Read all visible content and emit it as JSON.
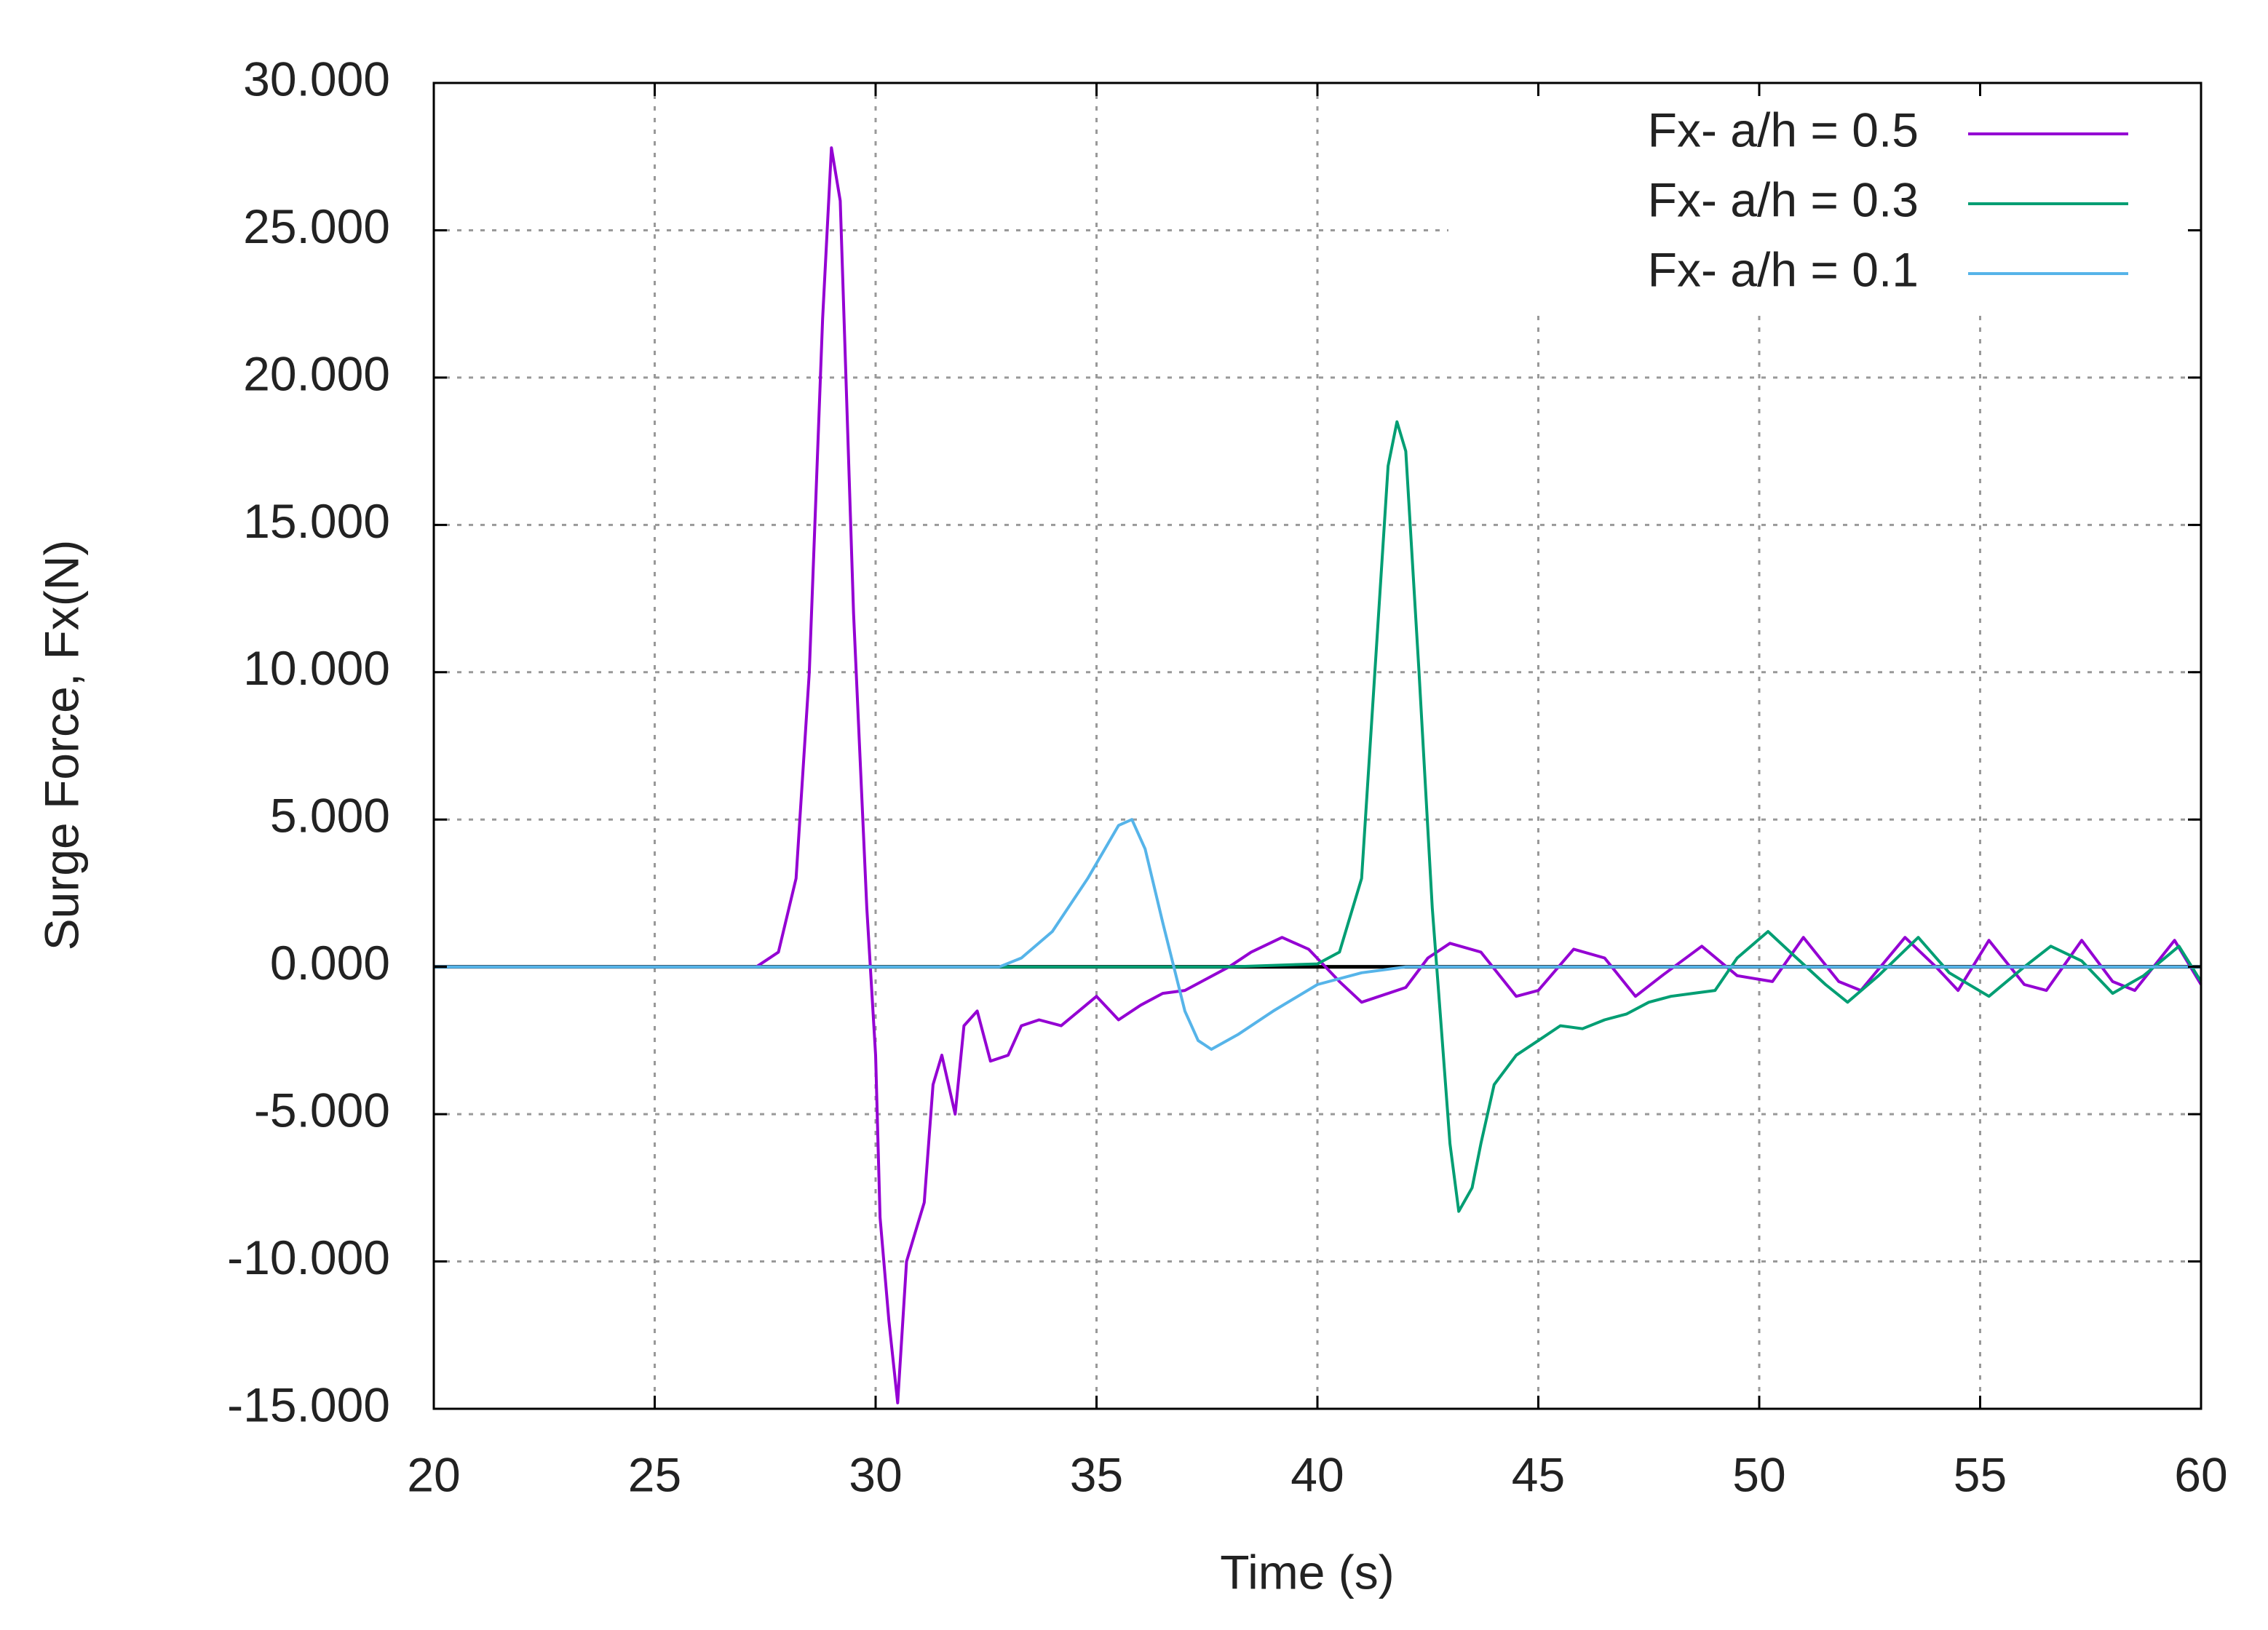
{
  "chart_data": {
    "type": "line",
    "xlabel": "Time (s)",
    "ylabel": "Surge Force, Fx(N)",
    "xlim": [
      20,
      60
    ],
    "xticks": [
      20,
      25,
      30,
      35,
      40,
      45,
      50,
      55,
      60
    ],
    "ylim": [
      -15,
      30
    ],
    "yticks": [
      {
        "value": -15,
        "label": "-15.000"
      },
      {
        "value": -10,
        "label": "-10.000"
      },
      {
        "value": -5,
        "label": "-5.000"
      },
      {
        "value": 0,
        "label": "0.000"
      },
      {
        "value": 5,
        "label": "5.000"
      },
      {
        "value": 10,
        "label": "10.000"
      },
      {
        "value": 15,
        "label": "15.000"
      },
      {
        "value": 20,
        "label": "20.000"
      },
      {
        "value": 25,
        "label": "25.000"
      },
      {
        "value": 30,
        "label": "30.000"
      }
    ],
    "grid": true,
    "legend": "upper right",
    "series": [
      {
        "name": "Fx- a/h = 0.5",
        "color": "#9400d3",
        "x": [
          20,
          27.3,
          27.8,
          28.2,
          28.5,
          28.8,
          29,
          29.2,
          29.5,
          29.8,
          30,
          30.1,
          30.3,
          30.5,
          30.7,
          30.9,
          31.1,
          31.3,
          31.5,
          31.8,
          32,
          32.3,
          32.6,
          33,
          33.3,
          33.7,
          34.2,
          34.6,
          35,
          35.5,
          36,
          36.5,
          37,
          37.5,
          38,
          38.5,
          39.2,
          39.8,
          40.5,
          41,
          42,
          42.5,
          43,
          43.7,
          44.5,
          45,
          45.8,
          46.5,
          47.2,
          47.8,
          48.7,
          49.5,
          50.3,
          51,
          51.8,
          52.3,
          53.3,
          54,
          54.5,
          55.2,
          56,
          56.5,
          57.3,
          58,
          58.5,
          59.4,
          60
        ],
        "values": [
          0,
          0,
          0.5,
          3,
          10,
          22,
          27.8,
          26,
          12,
          2,
          -3,
          -8.5,
          -12,
          -14.8,
          -10,
          -9,
          -8,
          -4,
          -3,
          -5,
          -2,
          -1.5,
          -3.2,
          -3,
          -2,
          -1.8,
          -2,
          -1.5,
          -1,
          -1.8,
          -1.3,
          -0.9,
          -0.8,
          -0.4,
          0,
          0.5,
          1,
          0.6,
          -0.5,
          -1.2,
          -0.7,
          0.3,
          0.8,
          0.5,
          -1,
          -0.8,
          0.6,
          0.3,
          -1,
          -0.3,
          0.7,
          -0.3,
          -0.5,
          1,
          -0.5,
          -0.8,
          1,
          0,
          -0.8,
          0.9,
          -0.6,
          -0.8,
          0.9,
          -0.5,
          -0.8,
          0.9,
          -0.6
        ]
      },
      {
        "name": "Fx- a/h = 0.3",
        "color": "#009e73",
        "x": [
          20,
          38,
          40,
          40.5,
          41,
          41.3,
          41.6,
          41.8,
          42,
          42.3,
          42.6,
          42.8,
          43,
          43.2,
          43.5,
          43.7,
          44,
          44.5,
          45,
          45.5,
          46,
          46.5,
          47,
          47.5,
          48,
          48.5,
          49,
          49.5,
          50.2,
          50.7,
          51.5,
          52,
          52.7,
          53.6,
          54.3,
          55.2,
          56,
          56.6,
          57.3,
          58,
          58.7,
          59.5,
          60
        ],
        "values": [
          0,
          0,
          0.1,
          0.5,
          3,
          10,
          17,
          18.5,
          17.5,
          10,
          2,
          -2,
          -6,
          -8.3,
          -7.5,
          -6,
          -4,
          -3,
          -2.5,
          -2,
          -2.1,
          -1.8,
          -1.6,
          -1.2,
          -1,
          -0.9,
          -0.8,
          0.3,
          1.2,
          0.5,
          -0.6,
          -1.2,
          -0.3,
          1,
          -0.2,
          -1,
          0,
          0.7,
          0.2,
          -0.9,
          -0.3,
          0.7,
          -0.5
        ]
      },
      {
        "name": "Fx- a/h = 0.1",
        "color": "#56b4e9",
        "x": [
          20,
          32.8,
          33.3,
          34,
          34.8,
          35.5,
          35.8,
          36.1,
          36.5,
          37,
          37.3,
          37.6,
          38.2,
          39,
          40,
          41,
          42,
          60
        ],
        "values": [
          0,
          0,
          0.3,
          1.2,
          3,
          4.8,
          5,
          4,
          1.5,
          -1.5,
          -2.5,
          -2.8,
          -2.3,
          -1.5,
          -0.6,
          -0.2,
          0,
          0
        ]
      }
    ]
  }
}
